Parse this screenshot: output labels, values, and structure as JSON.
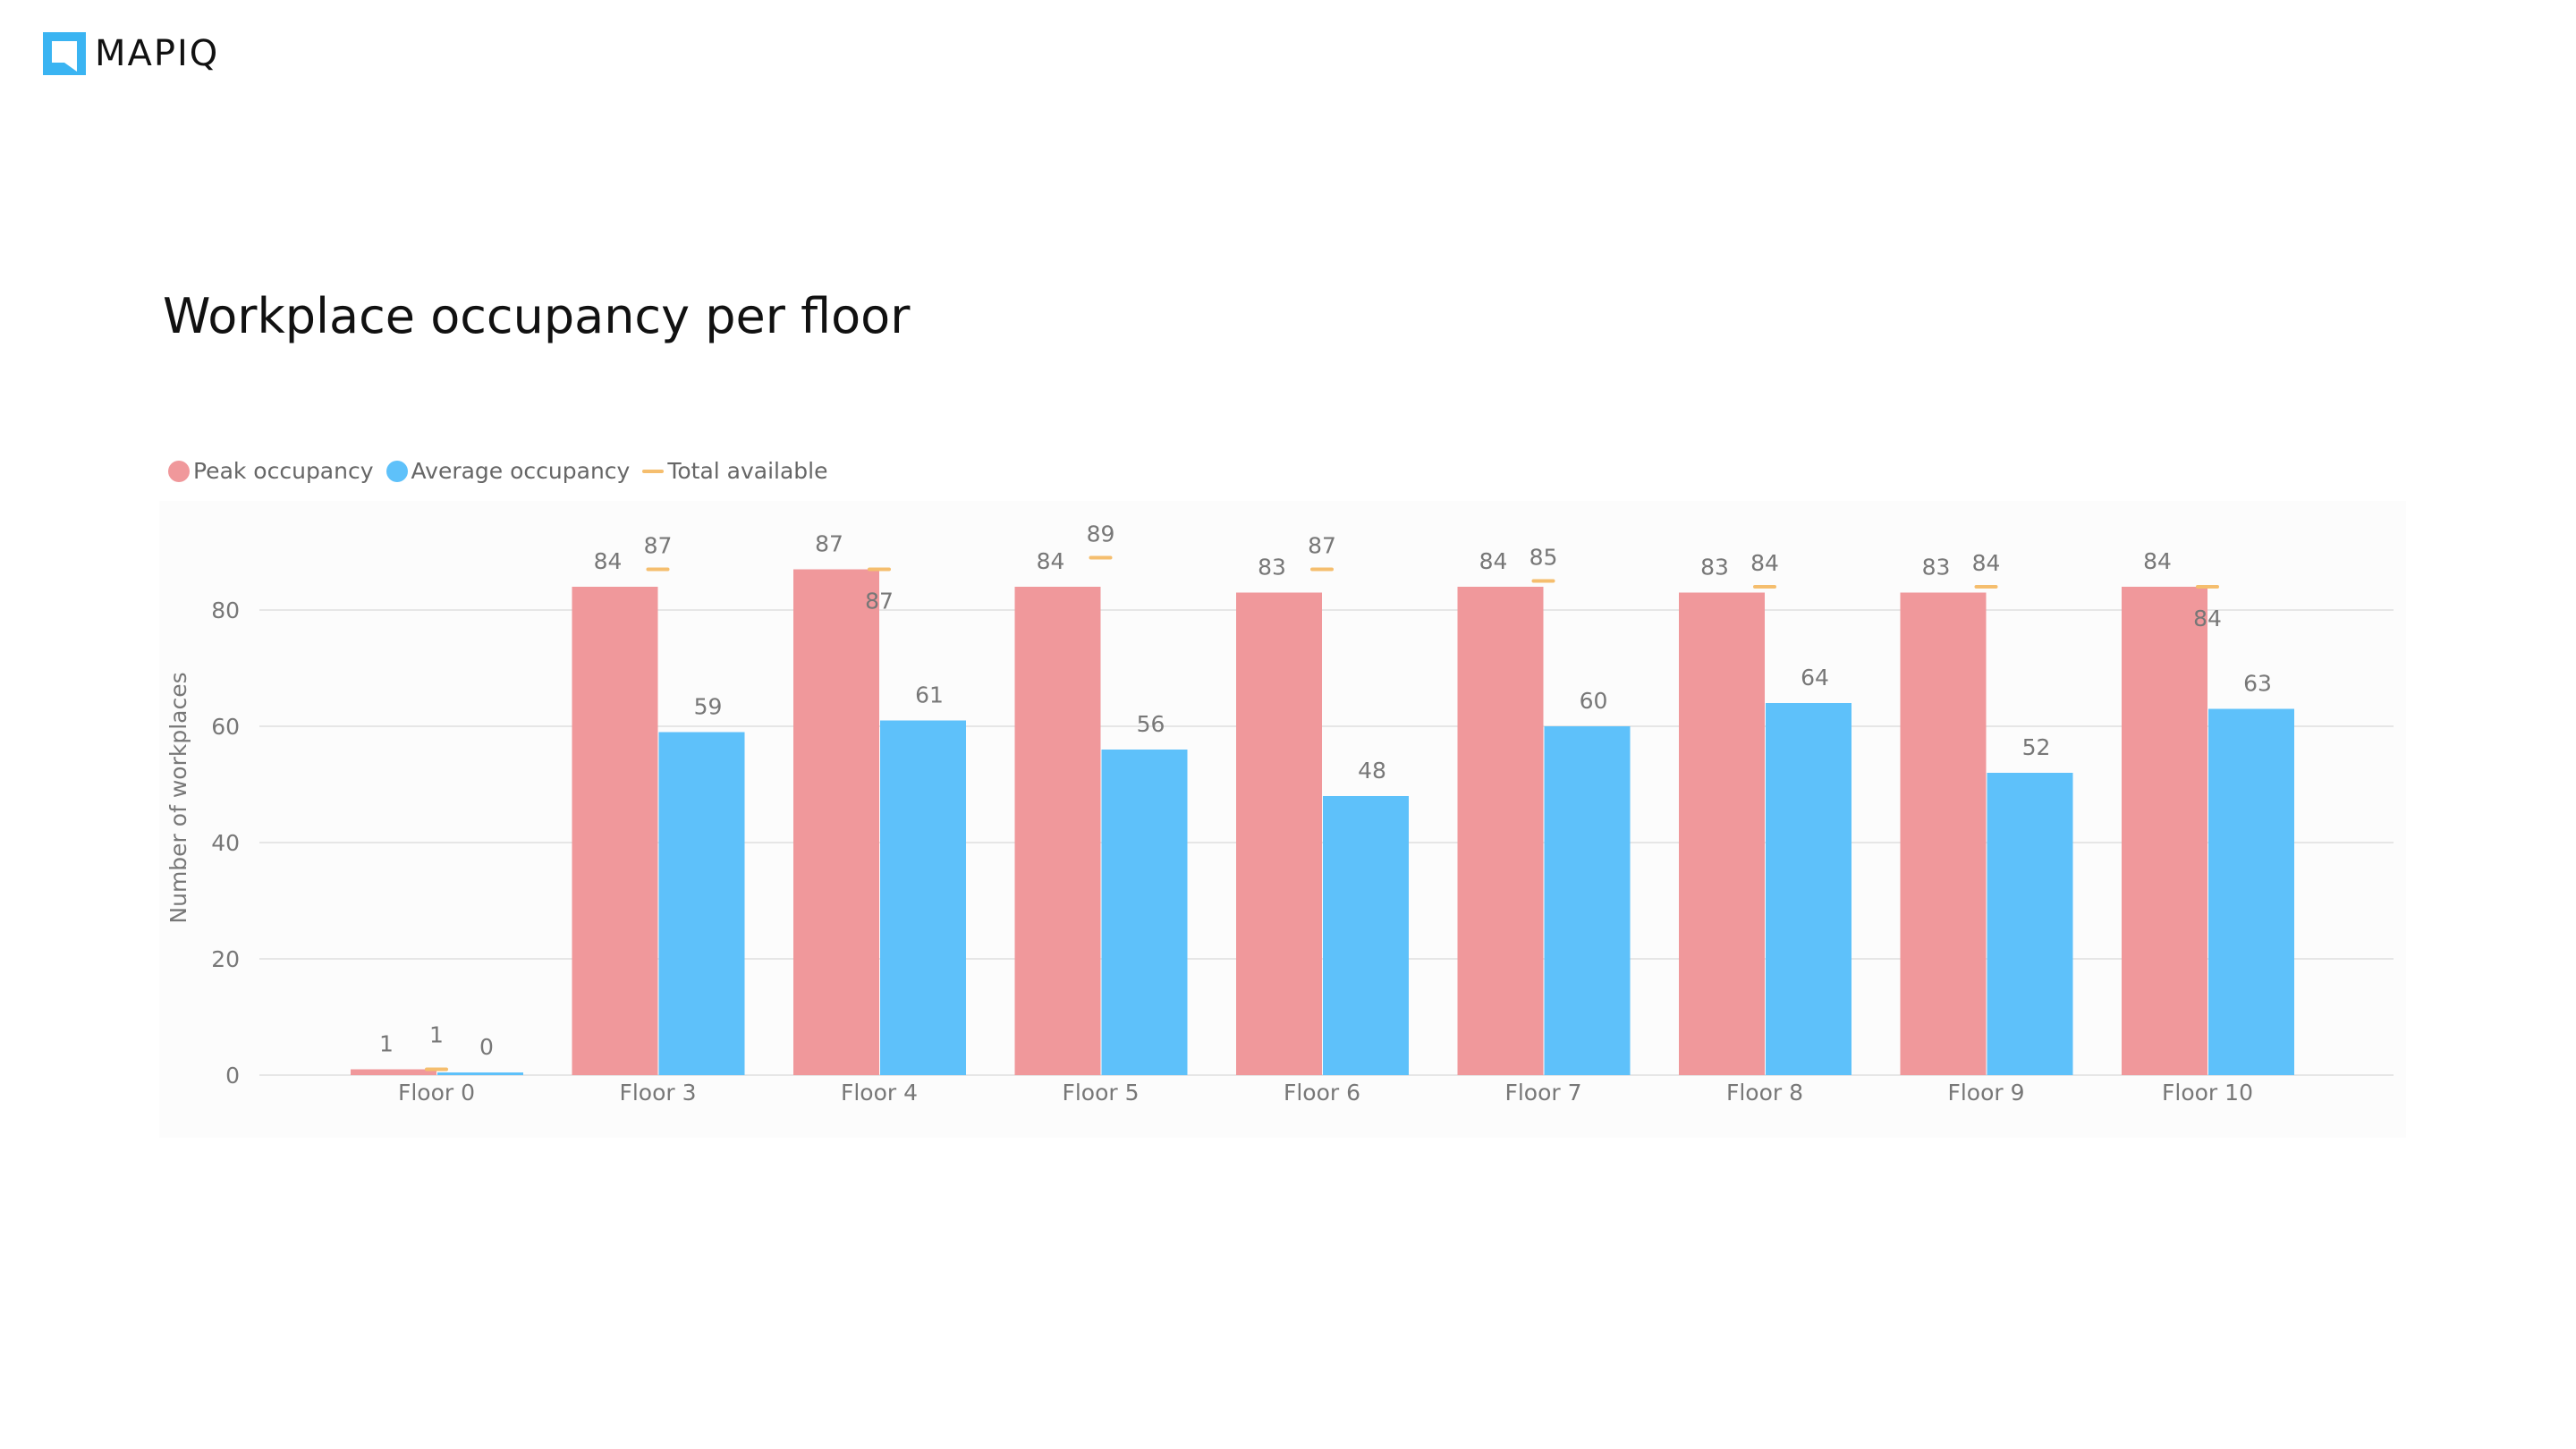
{
  "brand": {
    "name": "MAPIQ",
    "icon": "mapiq-logo-icon",
    "color": "#3ab4f2"
  },
  "colors": {
    "peak": "#f0989b",
    "average": "#5ec1fa",
    "total": "#f5be6e",
    "grid": "#e6e6e6",
    "axis_text": "#777777"
  },
  "chart_data": {
    "type": "bar",
    "title": "Workplace occupancy per floor",
    "xlabel": "",
    "ylabel": "Number of workplaces",
    "ylim": [
      0,
      90
    ],
    "yticks": [
      0,
      20,
      40,
      60,
      80
    ],
    "grid": true,
    "legend_position": "top-left",
    "categories": [
      "Floor 0",
      "Floor 3",
      "Floor 4",
      "Floor 5",
      "Floor 6",
      "Floor 7",
      "Floor 8",
      "Floor 9",
      "Floor 10"
    ],
    "series": [
      {
        "name": "Peak occupancy",
        "kind": "bar",
        "values": [
          1,
          84,
          87,
          84,
          83,
          84,
          83,
          83,
          84
        ]
      },
      {
        "name": "Average occupancy",
        "kind": "bar",
        "values": [
          0,
          59,
          61,
          56,
          48,
          60,
          64,
          52,
          63
        ]
      },
      {
        "name": "Total available",
        "kind": "marker",
        "values": [
          1,
          87,
          87,
          89,
          87,
          85,
          84,
          84,
          84
        ]
      }
    ]
  }
}
